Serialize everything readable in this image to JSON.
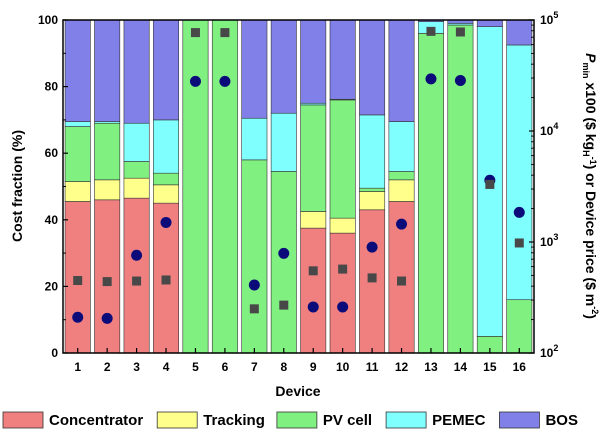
{
  "chart_data": {
    "type": "bar",
    "stacked": true,
    "categories": [
      "1",
      "2",
      "3",
      "4",
      "5",
      "6",
      "7",
      "8",
      "9",
      "10",
      "11",
      "12",
      "13",
      "14",
      "15",
      "16"
    ],
    "xlabel": "Device",
    "ylabel": "Cost fraction (%)",
    "ylim": [
      0,
      100
    ],
    "yticks": [
      "0",
      "20",
      "40",
      "60",
      "80",
      "100"
    ],
    "y2label_main": "P",
    "y2label_sub": "min",
    "y2label_rest": " x100 ($ kg",
    "y2label_sub2": "H",
    "y2label_sup2": "-1",
    "y2label_tail": ") or Device price ($ m",
    "y2label_sup": "-2",
    "y2label_end": ")",
    "y2lim": [
      100,
      100000
    ],
    "y2scale": "log",
    "y2ticks": [
      {
        "value": 100,
        "base": "10",
        "exp": "2"
      },
      {
        "value": 1000,
        "base": "10",
        "exp": "3"
      },
      {
        "value": 10000,
        "base": "10",
        "exp": "4"
      },
      {
        "value": 100000,
        "base": "10",
        "exp": "5"
      }
    ],
    "grid": false,
    "legend_position": "bottom",
    "series": [
      {
        "name": "Concentrator",
        "color": "#f08080",
        "values": [
          45.5,
          46,
          46.5,
          45,
          0,
          0,
          0,
          0,
          37.5,
          36,
          43,
          45.5,
          0,
          0,
          0,
          0
        ]
      },
      {
        "name": "Tracking",
        "color": "#ffff8c",
        "values": [
          6,
          6,
          6,
          5.5,
          0,
          0,
          0,
          0,
          5,
          4.5,
          5.5,
          6.5,
          0,
          0,
          0,
          0
        ]
      },
      {
        "name": "PV cell",
        "color": "#80f080",
        "values": [
          16.5,
          17,
          5,
          3.5,
          100,
          100,
          58,
          54.5,
          32,
          35.5,
          1,
          2.5,
          96,
          98.5,
          5,
          16
        ]
      },
      {
        "name": "PEMEC",
        "color": "#80ffff",
        "values": [
          1.5,
          0.5,
          11.5,
          16,
          0,
          0,
          12.5,
          17.5,
          0.5,
          0.2,
          22,
          15,
          3.5,
          0.5,
          93,
          76.5
        ]
      },
      {
        "name": "BOS",
        "color": "#8080e8",
        "values": [
          30.5,
          30.5,
          31,
          30,
          0,
          0,
          29.5,
          28,
          25,
          23.8,
          28.5,
          30.5,
          0.5,
          1,
          2,
          7.5
        ]
      }
    ],
    "markers": [
      {
        "name": "circle",
        "color": "#0b0b7a",
        "values": [
          210,
          205,
          760,
          1500,
          28000,
          28000,
          410,
          790,
          260,
          260,
          900,
          1450,
          29500,
          28500,
          3600,
          1850
        ]
      },
      {
        "name": "square",
        "color": "#484848",
        "values": [
          450,
          440,
          445,
          455,
          77000,
          77000,
          250,
          270,
          550,
          570,
          475,
          445,
          79000,
          78000,
          3300,
          980
        ]
      }
    ]
  }
}
